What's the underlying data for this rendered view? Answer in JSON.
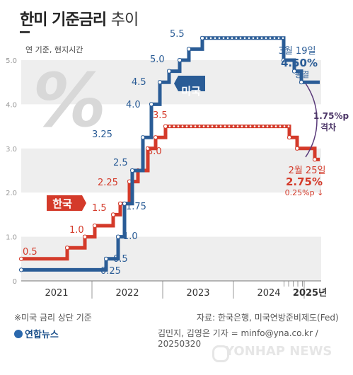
{
  "header": {
    "title_main": "한미 기준금리",
    "title_sub": "추이"
  },
  "chart_data": {
    "type": "line",
    "title": "한미 기준금리 추이",
    "ylabel": "연 기준, 현지시간",
    "ylim": [
      0,
      5.5
    ],
    "yticks": [
      "0",
      "1.0",
      "2.0",
      "3.0",
      "4.0",
      "5.0"
    ],
    "x_labels": [
      "2021",
      "2022",
      "2023",
      "2024",
      "2025년"
    ],
    "grid": "horizontal bands",
    "series": [
      {
        "name": "한국",
        "color": "#d43a2a",
        "steps": [
          {
            "x": 2021.0,
            "y": 0.5
          },
          {
            "x": 2021.65,
            "y": 0.75
          },
          {
            "x": 2021.9,
            "y": 1.0
          },
          {
            "x": 2022.04,
            "y": 1.25
          },
          {
            "x": 2022.3,
            "y": 1.5
          },
          {
            "x": 2022.4,
            "y": 1.75
          },
          {
            "x": 2022.53,
            "y": 2.25
          },
          {
            "x": 2022.65,
            "y": 2.5
          },
          {
            "x": 2022.79,
            "y": 3.0
          },
          {
            "x": 2022.9,
            "y": 3.25
          },
          {
            "x": 2023.04,
            "y": 3.5
          },
          {
            "x": 2024.79,
            "y": 3.25
          },
          {
            "x": 2024.9,
            "y": 3.0
          },
          {
            "x": 2025.15,
            "y": 2.75
          }
        ],
        "end": 2025.22
      },
      {
        "name": "미국",
        "color": "#2a5c96",
        "steps": [
          {
            "x": 2021.0,
            "y": 0.25
          },
          {
            "x": 2022.2,
            "y": 0.5
          },
          {
            "x": 2022.37,
            "y": 1.0
          },
          {
            "x": 2022.46,
            "y": 1.75
          },
          {
            "x": 2022.57,
            "y": 2.5
          },
          {
            "x": 2022.72,
            "y": 3.25
          },
          {
            "x": 2022.84,
            "y": 4.0
          },
          {
            "x": 2022.96,
            "y": 4.5
          },
          {
            "x": 2023.09,
            "y": 4.75
          },
          {
            "x": 2023.24,
            "y": 5.0
          },
          {
            "x": 2023.37,
            "y": 5.25
          },
          {
            "x": 2023.56,
            "y": 5.5
          },
          {
            "x": 2024.71,
            "y": 5.0
          },
          {
            "x": 2024.86,
            "y": 4.75
          },
          {
            "x": 2024.96,
            "y": 4.5
          }
        ],
        "end": 2025.22
      }
    ],
    "kr_labels": [
      "0.5",
      "1.0",
      "1.5",
      "2.25",
      "3.0",
      "3.5"
    ],
    "us_labels": [
      "0.25",
      "0.5",
      "1.0",
      "1.75",
      "2.5",
      "3.25",
      "4.0",
      "4.5",
      "5.0",
      "5.5"
    ],
    "annotations": {
      "us_date": "3월 19일",
      "us_rate": "4.50%",
      "us_status": "동결",
      "kr_date": "2월 25일",
      "kr_rate": "2.75%",
      "kr_change": "0.25%p ↓",
      "gap_value": "1.75%p",
      "gap_label": "격차"
    },
    "series_tags": {
      "kr": "한국",
      "us": "미국"
    },
    "percent_glyph": "%"
  },
  "footer": {
    "note": "※미국 금리 상단 기준",
    "source": "자료: 한국은행, 미국연방준비제도(Fed)",
    "brand": "연합뉴스",
    "credit": "김민지, 김영은 기자 = minfo@yna.co.kr / 20250320",
    "watermark": "YONHAP NEWS"
  }
}
